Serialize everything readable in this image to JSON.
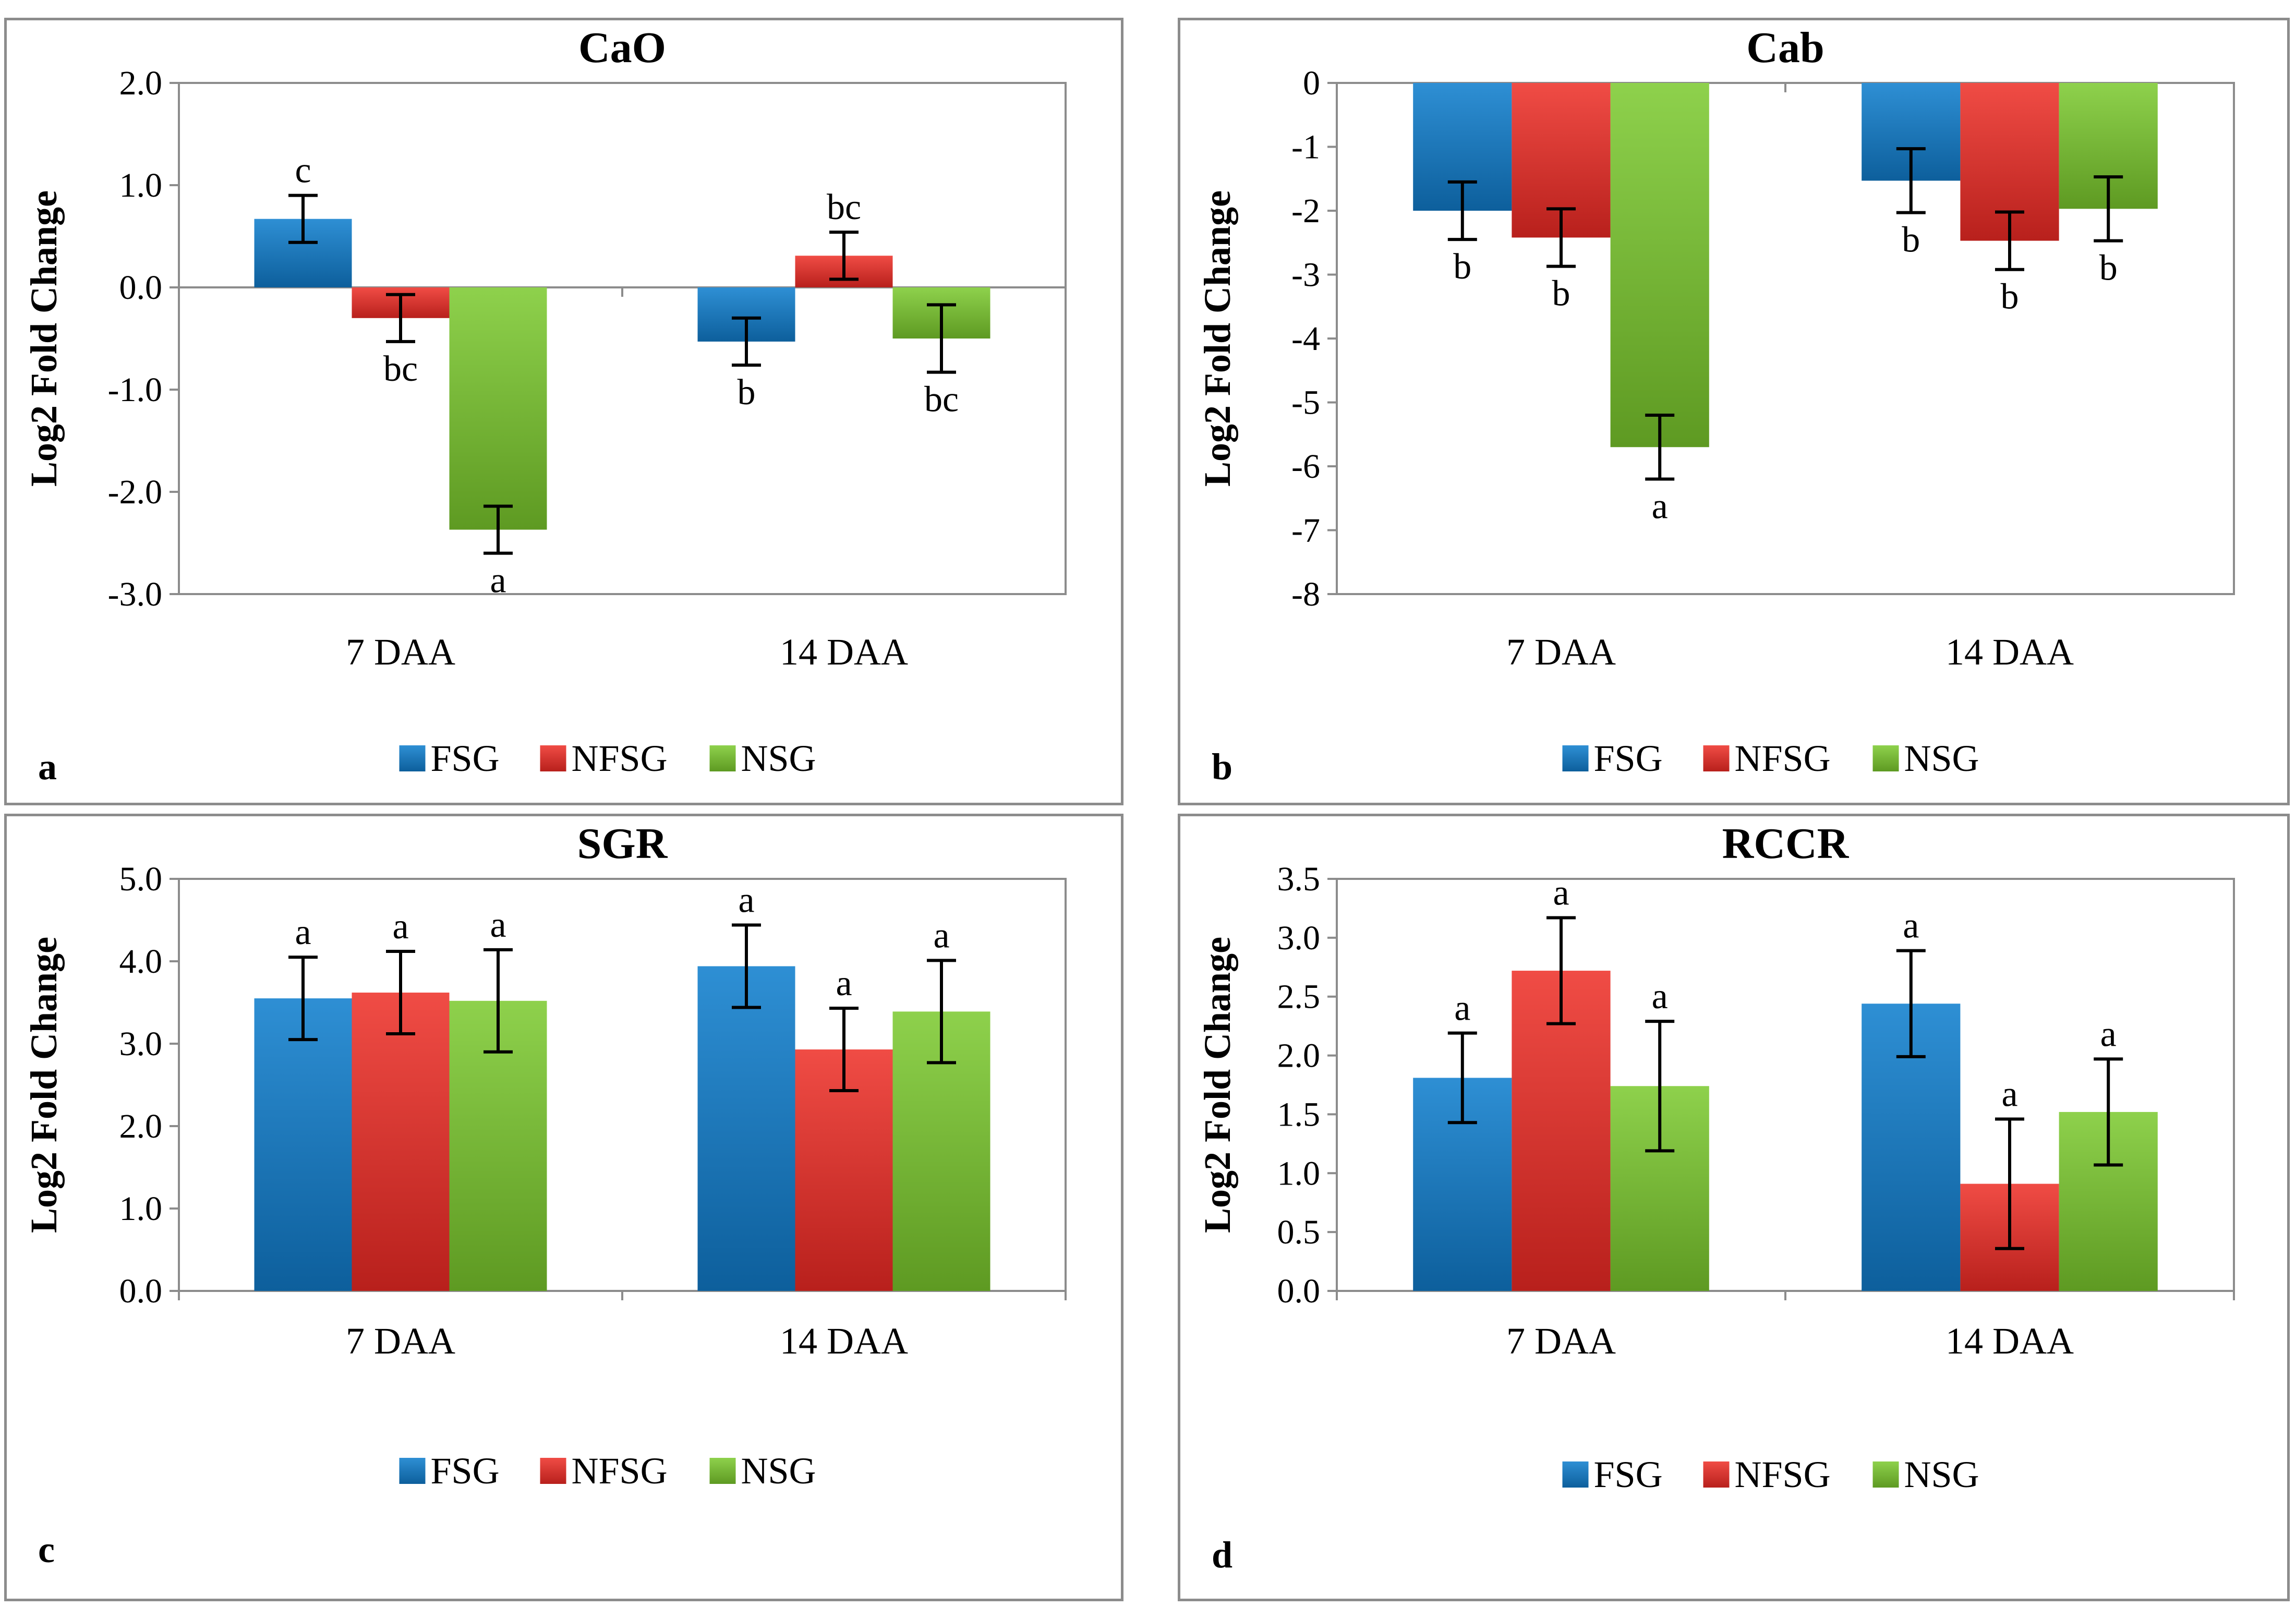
{
  "colors": {
    "FSG": [
      "#2e8fd4",
      "#0d5f9c"
    ],
    "NFSG": [
      "#f04c45",
      "#b8201c"
    ],
    "NSG": [
      "#8ed14c",
      "#5e9a22"
    ]
  },
  "chart_data": [
    {
      "type": "bar",
      "panel_letter": "a",
      "title": "CaO",
      "ylabel": "Log2 Fold Change",
      "xlabel": "",
      "ylim": [
        -3.0,
        2.0
      ],
      "yticks": [
        2.0,
        1.0,
        0.0,
        -1.0,
        -2.0,
        -3.0
      ],
      "ytick_labels": [
        "2.0",
        "1.0",
        "0.0",
        "-1.0",
        "-2.0",
        "-3.0"
      ],
      "categories": [
        "7 DAA",
        "14 DAA"
      ],
      "legend": [
        "FSG",
        "NFSG",
        "NSG"
      ],
      "legend_position": "bottom",
      "series": [
        {
          "name": "FSG",
          "values": [
            0.67,
            -0.53
          ],
          "errors": [
            0.23,
            0.23
          ],
          "labels": [
            "c",
            "b"
          ]
        },
        {
          "name": "NFSG",
          "values": [
            -0.3,
            0.31
          ],
          "errors": [
            0.23,
            0.23
          ],
          "labels": [
            "bc",
            "bc"
          ]
        },
        {
          "name": "NSG",
          "values": [
            -2.37,
            -0.5
          ],
          "errors": [
            0.23,
            0.33
          ],
          "labels": [
            "a",
            "bc"
          ]
        }
      ]
    },
    {
      "type": "bar",
      "panel_letter": "b",
      "title": "Cab",
      "ylabel": "Log2 Fold Change",
      "xlabel": "",
      "ylim": [
        -8,
        0
      ],
      "yticks": [
        0,
        -1,
        -2,
        -3,
        -4,
        -5,
        -6,
        -7,
        -8
      ],
      "ytick_labels": [
        "0",
        "-1",
        "-2",
        "-3",
        "-4",
        "-5",
        "-6",
        "-7",
        "-8"
      ],
      "categories": [
        "7 DAA",
        "14 DAA"
      ],
      "legend": [
        "FSG",
        "NFSG",
        "NSG"
      ],
      "legend_position": "bottom",
      "series": [
        {
          "name": "FSG",
          "values": [
            -2.0,
            -1.53
          ],
          "errors": [
            0.45,
            0.5
          ],
          "labels": [
            "b",
            "b"
          ]
        },
        {
          "name": "NFSG",
          "values": [
            -2.42,
            -2.47
          ],
          "errors": [
            0.45,
            0.45
          ],
          "labels": [
            "b",
            "b"
          ]
        },
        {
          "name": "NSG",
          "values": [
            -5.7,
            -1.97
          ],
          "errors": [
            0.5,
            0.5
          ],
          "labels": [
            "a",
            "b"
          ]
        }
      ]
    },
    {
      "type": "bar",
      "panel_letter": "c",
      "title": "SGR",
      "ylabel": "Log2 Fold Change",
      "xlabel": "",
      "ylim": [
        0.0,
        5.0
      ],
      "yticks": [
        5.0,
        4.0,
        3.0,
        2.0,
        1.0,
        0.0
      ],
      "ytick_labels": [
        "5.0",
        "4.0",
        "3.0",
        "2.0",
        "1.0",
        "0.0"
      ],
      "categories": [
        "7 DAA",
        "14 DAA"
      ],
      "legend": [
        "FSG",
        "NFSG",
        "NSG"
      ],
      "legend_position": "bottom",
      "series": [
        {
          "name": "FSG",
          "values": [
            3.55,
            3.94
          ],
          "errors": [
            0.5,
            0.5
          ],
          "labels": [
            "a",
            "a"
          ]
        },
        {
          "name": "NFSG",
          "values": [
            3.62,
            2.93
          ],
          "errors": [
            0.5,
            0.5
          ],
          "labels": [
            "a",
            "a"
          ]
        },
        {
          "name": "NSG",
          "values": [
            3.52,
            3.39
          ],
          "errors": [
            0.62,
            0.62
          ],
          "labels": [
            "a",
            "a"
          ]
        }
      ]
    },
    {
      "type": "bar",
      "panel_letter": "d",
      "title": "RCCR",
      "ylabel": "Log2 Fold Change",
      "xlabel": "",
      "ylim": [
        0.0,
        3.5
      ],
      "yticks": [
        3.5,
        3.0,
        2.5,
        2.0,
        1.5,
        1.0,
        0.5,
        0.0
      ],
      "ytick_labels": [
        "3.5",
        "3.0",
        "2.5",
        "2.0",
        "1.5",
        "1.0",
        "0.5",
        "0.0"
      ],
      "categories": [
        "7 DAA",
        "14 DAA"
      ],
      "legend": [
        "FSG",
        "NFSG",
        "NSG"
      ],
      "legend_position": "bottom",
      "series": [
        {
          "name": "FSG",
          "values": [
            1.81,
            2.44
          ],
          "errors": [
            0.38,
            0.45
          ],
          "labels": [
            "a",
            "a"
          ]
        },
        {
          "name": "NFSG",
          "values": [
            2.72,
            0.91
          ],
          "errors": [
            0.45,
            0.55
          ],
          "labels": [
            "a",
            "a"
          ]
        },
        {
          "name": "NSG",
          "values": [
            1.74,
            1.52
          ],
          "errors": [
            0.55,
            0.45
          ],
          "labels": [
            "a",
            "a"
          ]
        }
      ]
    }
  ]
}
